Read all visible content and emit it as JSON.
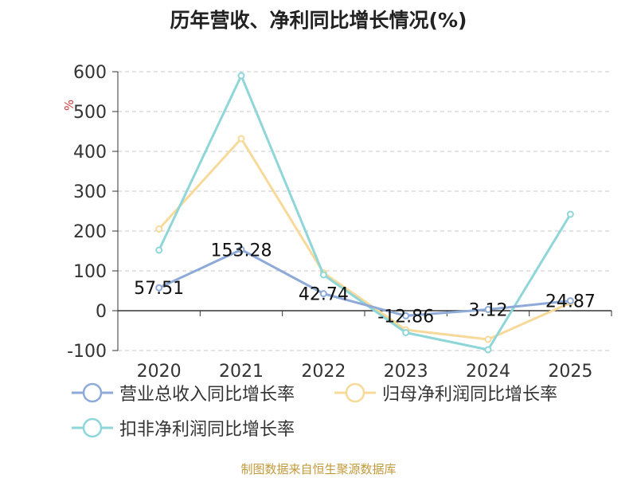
{
  "chart_data": {
    "type": "line",
    "title": "历年营收、净利同比增长情况(%)",
    "ylabel": "%",
    "categories": [
      "2020",
      "2021",
      "2022",
      "2023",
      "2024",
      "2025"
    ],
    "ylim": [
      -100,
      600
    ],
    "yticks": [
      -100,
      0,
      100,
      200,
      300,
      400,
      500,
      600
    ],
    "grid": true,
    "legend_position": "bottom-left",
    "series": [
      {
        "name": "营业总收入同比增长率",
        "color": "#8eaad8",
        "values": [
          57.51,
          153.28,
          42.74,
          -12.86,
          3.12,
          24.87
        ],
        "labels": [
          "57.51",
          "153.28",
          "42.74",
          "-12.86",
          "3.12",
          "24.87"
        ]
      },
      {
        "name": "归母净利润同比增长率",
        "color": "#f7d99a",
        "values": [
          205,
          432,
          95,
          -48,
          -72,
          20
        ],
        "labels": null
      },
      {
        "name": "扣非净利润同比增长率",
        "color": "#8fd6d9",
        "values": [
          152,
          590,
          90,
          -55,
          -98,
          242
        ],
        "labels": null
      }
    ]
  },
  "source_text": "制图数据来自恒生聚源数据库"
}
